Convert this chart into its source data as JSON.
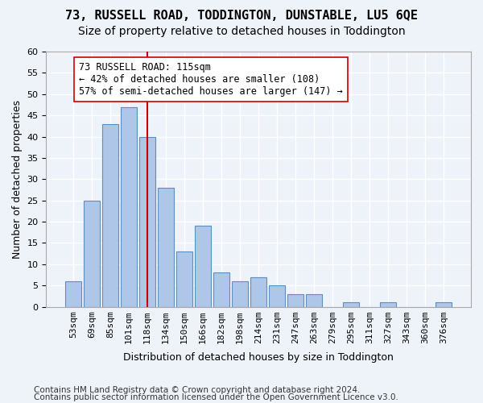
{
  "title1": "73, RUSSELL ROAD, TODDINGTON, DUNSTABLE, LU5 6QE",
  "title2": "Size of property relative to detached houses in Toddington",
  "xlabel": "Distribution of detached houses by size in Toddington",
  "ylabel": "Number of detached properties",
  "categories": [
    "53sqm",
    "69sqm",
    "85sqm",
    "101sqm",
    "118sqm",
    "134sqm",
    "150sqm",
    "166sqm",
    "182sqm",
    "198sqm",
    "214sqm",
    "231sqm",
    "247sqm",
    "263sqm",
    "279sqm",
    "295sqm",
    "311sqm",
    "327sqm",
    "343sqm",
    "360sqm",
    "376sqm"
  ],
  "values": [
    6,
    25,
    43,
    47,
    40,
    28,
    13,
    19,
    8,
    6,
    7,
    5,
    3,
    3,
    0,
    1,
    0,
    1,
    0,
    0,
    1
  ],
  "bar_color": "#aec6e8",
  "bar_edge_color": "#5a8fc0",
  "reference_line_color": "#cc0000",
  "reference_line_x": 4,
  "annotation_text": "73 RUSSELL ROAD: 115sqm\n← 42% of detached houses are smaller (108)\n57% of semi-detached houses are larger (147) →",
  "annotation_box_color": "#ffffff",
  "annotation_box_edge_color": "#cc0000",
  "ylim": [
    0,
    60
  ],
  "yticks": [
    0,
    5,
    10,
    15,
    20,
    25,
    30,
    35,
    40,
    45,
    50,
    55,
    60
  ],
  "footer1": "Contains HM Land Registry data © Crown copyright and database right 2024.",
  "footer2": "Contains public sector information licensed under the Open Government Licence v3.0.",
  "bg_color": "#eef2f9",
  "grid_color": "#ffffff",
  "title1_fontsize": 11,
  "title2_fontsize": 10,
  "xlabel_fontsize": 9,
  "ylabel_fontsize": 9,
  "tick_fontsize": 8,
  "annotation_fontsize": 8.5,
  "footer_fontsize": 7.5
}
